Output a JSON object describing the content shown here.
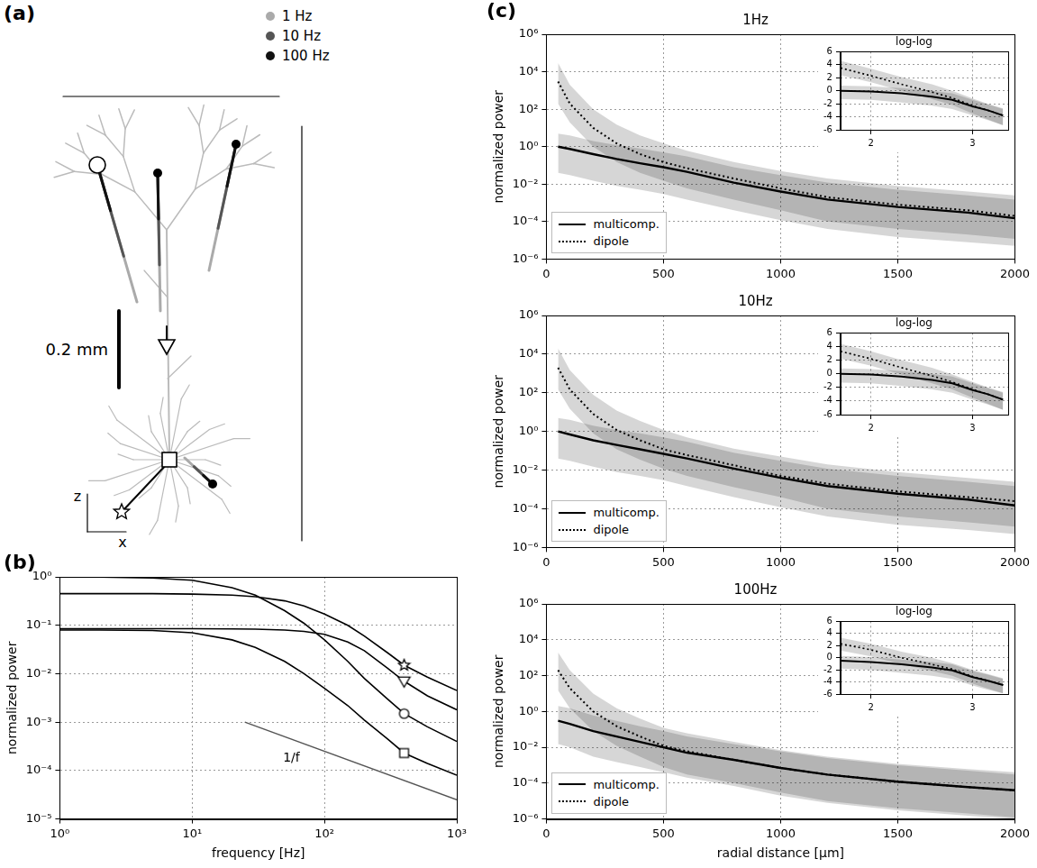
{
  "diagram": {
    "panel": "(a)",
    "legend": [
      {
        "name": "1 Hz",
        "color": "#aaaaaa"
      },
      {
        "name": "10 Hz",
        "color": "#555555"
      },
      {
        "name": "100 Hz",
        "color": "#111111"
      }
    ],
    "scale_bar": "0.2 mm",
    "axes": {
      "vertical": "z",
      "horizontal": "x"
    }
  },
  "chart_data": [
    {
      "panel": "(b)",
      "type": "line",
      "log": true,
      "grid": true,
      "x_label": "frequency [Hz]",
      "y_label": "normalized power",
      "xlim": [
        1,
        1000
      ],
      "ylim": [
        1e-05,
        1
      ],
      "xticks": [
        {
          "value": 1,
          "label": "10⁰"
        },
        {
          "value": 10,
          "label": "10¹"
        },
        {
          "value": 100,
          "label": "10²"
        },
        {
          "value": 1000,
          "label": "10³"
        }
      ],
      "yticks": [
        {
          "value": 1e-05,
          "label": "10⁻⁵"
        },
        {
          "value": 0.0001,
          "label": "10⁻⁴"
        },
        {
          "value": 0.001,
          "label": "10⁻³"
        },
        {
          "value": 0.01,
          "label": "10⁻²"
        },
        {
          "value": 0.1,
          "label": "10⁻¹"
        },
        {
          "value": 1,
          "label": "10⁰"
        }
      ],
      "x": [
        1,
        2,
        5,
        10,
        20,
        30,
        50,
        70,
        100,
        150,
        200,
        300,
        400,
        600,
        1000
      ],
      "marker_x": 400,
      "series": [
        {
          "color": "#000000",
          "marker": "star",
          "values": [
            0.45,
            0.45,
            0.45,
            0.44,
            0.42,
            0.39,
            0.32,
            0.25,
            0.17,
            0.1,
            0.06,
            0.027,
            0.015,
            0.0085,
            0.0045
          ]
        },
        {
          "color": "#000000",
          "marker": "triangle_down",
          "values": [
            0.085,
            0.085,
            0.085,
            0.085,
            0.084,
            0.083,
            0.08,
            0.075,
            0.065,
            0.045,
            0.03,
            0.013,
            0.007,
            0.0035,
            0.0018
          ]
        },
        {
          "color": "#000000",
          "marker": "circle",
          "values": [
            1.0,
            0.99,
            0.95,
            0.85,
            0.6,
            0.42,
            0.2,
            0.11,
            0.05,
            0.018,
            0.008,
            0.003,
            0.0015,
            0.0008,
            0.0004
          ]
        },
        {
          "color": "#000000",
          "marker": "square",
          "values": [
            0.08,
            0.08,
            0.078,
            0.07,
            0.05,
            0.035,
            0.018,
            0.01,
            0.005,
            0.0022,
            0.0011,
            0.00045,
            0.00023,
            0.00014,
            8e-05
          ]
        }
      ],
      "reference_line": {
        "name": "1/f",
        "color": "#555555",
        "x": [
          25,
          1000
        ],
        "values": [
          0.001,
          2.5e-05
        ]
      }
    },
    {
      "panel": "(c)",
      "type": "line",
      "title": "1Hz",
      "log": "y",
      "grid": true,
      "legend": "lower left",
      "y_label": "normalized power",
      "xlim": [
        0,
        2000
      ],
      "xticks": [
        0,
        500,
        1000,
        1500,
        2000
      ],
      "ylim": [
        1e-06,
        1000000
      ],
      "yticks": [
        {
          "value": 1e-06,
          "label": "10⁻⁶"
        },
        {
          "value": 0.0001,
          "label": "10⁻⁴"
        },
        {
          "value": 0.01,
          "label": "10⁻²"
        },
        {
          "value": 1,
          "label": "10⁰"
        },
        {
          "value": 100,
          "label": "10²"
        },
        {
          "value": 10000,
          "label": "10⁴"
        },
        {
          "value": 1000000,
          "label": "10⁶"
        }
      ],
      "x": [
        50,
        100,
        200,
        300,
        400,
        500,
        600,
        800,
        1000,
        1200,
        1500,
        1800,
        2000
      ],
      "series": [
        {
          "name": "multicomp.",
          "color": "#000000",
          "line_style": "solid",
          "values": [
            1.0,
            0.75,
            0.4,
            0.22,
            0.13,
            0.08,
            0.045,
            0.012,
            0.004,
            0.0015,
            0.0006,
            0.0003,
            0.00015
          ],
          "lower": [
            0.04,
            0.03,
            0.015,
            0.008,
            0.005,
            0.003,
            0.0015,
            0.0004,
            0.00012,
            4e-05,
            1.5e-05,
            8e-06,
            5e-06
          ],
          "upper": [
            5,
            4,
            2,
            1.2,
            0.8,
            0.5,
            0.3,
            0.08,
            0.03,
            0.012,
            0.005,
            0.0025,
            0.0015
          ]
        },
        {
          "name": "dipole",
          "color": "#000000",
          "line_style": "dotted",
          "values": [
            3000,
            200,
            10,
            1.5,
            0.4,
            0.15,
            0.07,
            0.02,
            0.006,
            0.002,
            0.0008,
            0.0004,
            0.0002
          ],
          "lower": [
            200,
            20,
            1,
            0.15,
            0.04,
            0.015,
            0.006,
            0.0015,
            0.0004,
            0.0001,
            4e-05,
            2e-05,
            1.2e-05
          ],
          "upper": [
            30000,
            2000,
            100,
            15,
            4,
            1.5,
            0.6,
            0.15,
            0.05,
            0.02,
            0.008,
            0.004,
            0.0025
          ]
        }
      ],
      "inset": {
        "title": "log-log",
        "type": "line",
        "grid": true,
        "xlim": [
          1.7,
          3.35
        ],
        "xticks": [
          2,
          3
        ],
        "ylim": [
          -6,
          6
        ],
        "yticks": [
          -6,
          -4,
          -2,
          0,
          2,
          4,
          6
        ],
        "x": [
          1.7,
          2.0,
          2.3,
          2.6,
          2.8,
          3.0,
          3.15,
          3.3
        ],
        "series": [
          {
            "color": "#000000",
            "line_style": "solid",
            "values": [
              0,
              -0.1,
              -0.4,
              -0.9,
              -1.4,
              -2.4,
              -3.0,
              -3.8
            ],
            "lower": [
              -1.3,
              -1.4,
              -1.8,
              -2.3,
              -2.8,
              -3.8,
              -4.5,
              -5.3
            ],
            "upper": [
              0.8,
              0.7,
              0.4,
              0,
              -0.4,
              -1.4,
              -2.1,
              -2.8
            ]
          },
          {
            "color": "#000000",
            "line_style": "dotted",
            "values": [
              3.5,
              2.3,
              1.0,
              -0.2,
              -1.1,
              -2.3,
              -3.0,
              -3.8
            ],
            "lower": [
              2.4,
              1.3,
              0,
              -1.3,
              -2.2,
              -3.5,
              -4.4,
              -5.3
            ],
            "upper": [
              4.6,
              3.4,
              2.1,
              1.0,
              0,
              -1.2,
              -2.0,
              -2.7
            ]
          }
        ]
      }
    },
    {
      "type": "line",
      "title": "10Hz",
      "log": "y",
      "grid": true,
      "legend": "lower left",
      "y_label": "normalized power",
      "xlim": [
        0,
        2000
      ],
      "xticks": [
        0,
        500,
        1000,
        1500,
        2000
      ],
      "ylim": [
        1e-06,
        1000000
      ],
      "yticks": [
        {
          "value": 1e-06,
          "label": "10⁻⁶"
        },
        {
          "value": 0.0001,
          "label": "10⁻⁴"
        },
        {
          "value": 0.01,
          "label": "10⁻²"
        },
        {
          "value": 1,
          "label": "10⁰"
        },
        {
          "value": 100,
          "label": "10²"
        },
        {
          "value": 10000,
          "label": "10⁴"
        },
        {
          "value": 1000000,
          "label": "10⁶"
        }
      ],
      "x": [
        50,
        100,
        200,
        300,
        400,
        500,
        600,
        800,
        1000,
        1200,
        1500,
        1800,
        2000
      ],
      "series": [
        {
          "name": "multicomp.",
          "color": "#000000",
          "line_style": "solid",
          "values": [
            1.0,
            0.7,
            0.35,
            0.2,
            0.12,
            0.07,
            0.04,
            0.012,
            0.004,
            0.0015,
            0.0006,
            0.0003,
            0.00015
          ],
          "lower": [
            0.04,
            0.03,
            0.015,
            0.008,
            0.005,
            0.003,
            0.0015,
            0.0004,
            0.00012,
            4e-05,
            1.5e-05,
            8e-06,
            5e-06
          ],
          "upper": [
            5,
            4,
            2,
            1.2,
            0.8,
            0.5,
            0.3,
            0.08,
            0.03,
            0.012,
            0.005,
            0.0025,
            0.0015
          ]
        },
        {
          "name": "dipole",
          "color": "#000000",
          "line_style": "dotted",
          "values": [
            2000,
            150,
            8,
            1.2,
            0.35,
            0.12,
            0.06,
            0.018,
            0.005,
            0.002,
            0.0008,
            0.0004,
            0.00025
          ],
          "lower": [
            150,
            15,
            0.8,
            0.12,
            0.035,
            0.012,
            0.005,
            0.0013,
            0.0004,
            0.0001,
            4e-05,
            2e-05,
            1.2e-05
          ],
          "upper": [
            20000,
            1500,
            80,
            12,
            3.5,
            1.2,
            0.5,
            0.13,
            0.05,
            0.02,
            0.008,
            0.004,
            0.0025
          ]
        }
      ],
      "inset": {
        "title": "log-log",
        "type": "line",
        "grid": true,
        "xlim": [
          1.7,
          3.35
        ],
        "xticks": [
          2,
          3
        ],
        "ylim": [
          -6,
          6
        ],
        "yticks": [
          -6,
          -4,
          -2,
          0,
          2,
          4,
          6
        ],
        "x": [
          1.7,
          2.0,
          2.3,
          2.6,
          2.8,
          3.0,
          3.15,
          3.3
        ],
        "series": [
          {
            "color": "#000000",
            "line_style": "solid",
            "values": [
              0,
              -0.1,
              -0.4,
              -0.9,
              -1.4,
              -2.4,
              -3.0,
              -3.8
            ],
            "lower": [
              -1.3,
              -1.4,
              -1.8,
              -2.3,
              -2.8,
              -3.8,
              -4.5,
              -5.3
            ],
            "upper": [
              0.8,
              0.7,
              0.4,
              0,
              -0.4,
              -1.4,
              -2.1,
              -2.8
            ]
          },
          {
            "color": "#000000",
            "line_style": "dotted",
            "values": [
              3.3,
              2.2,
              0.9,
              -0.3,
              -1.2,
              -2.3,
              -3.0,
              -3.8
            ],
            "lower": [
              2.2,
              1.2,
              -0.1,
              -1.4,
              -2.3,
              -3.5,
              -4.4,
              -5.3
            ],
            "upper": [
              4.4,
              3.3,
              2.0,
              0.9,
              -0.1,
              -1.2,
              -2.0,
              -2.7
            ]
          }
        ]
      }
    },
    {
      "type": "line",
      "title": "100Hz",
      "log": "y",
      "grid": true,
      "legend": "lower left",
      "x_label": "radial distance [µm]",
      "y_label": "normalized power",
      "xlim": [
        0,
        2000
      ],
      "xticks": [
        0,
        500,
        1000,
        1500,
        2000
      ],
      "ylim": [
        1e-06,
        1000000
      ],
      "yticks": [
        {
          "value": 1e-06,
          "label": "10⁻⁶"
        },
        {
          "value": 0.0001,
          "label": "10⁻⁴"
        },
        {
          "value": 0.01,
          "label": "10⁻²"
        },
        {
          "value": 1,
          "label": "10⁰"
        },
        {
          "value": 100,
          "label": "10²"
        },
        {
          "value": 10000,
          "label": "10⁴"
        },
        {
          "value": 1000000,
          "label": "10⁶"
        }
      ],
      "x": [
        50,
        100,
        200,
        300,
        400,
        500,
        600,
        800,
        1000,
        1200,
        1500,
        1800,
        2000
      ],
      "series": [
        {
          "name": "multicomp.",
          "color": "#000000",
          "line_style": "solid",
          "values": [
            0.3,
            0.2,
            0.08,
            0.04,
            0.02,
            0.01,
            0.005,
            0.002,
            0.0007,
            0.0003,
            0.00012,
            6e-05,
            4e-05
          ],
          "lower": [
            0.015,
            0.01,
            0.003,
            0.0015,
            0.0008,
            0.0004,
            0.0002,
            7e-05,
            2e-05,
            8e-06,
            3e-06,
            1.5e-06,
            1e-06
          ],
          "upper": [
            2,
            1.5,
            0.6,
            0.3,
            0.15,
            0.08,
            0.04,
            0.015,
            0.006,
            0.0025,
            0.001,
            0.0005,
            0.0003
          ]
        },
        {
          "name": "dipole",
          "color": "#000000",
          "line_style": "dotted",
          "values": [
            200,
            20,
            1,
            0.15,
            0.04,
            0.012,
            0.006,
            0.002,
            0.0007,
            0.0003,
            0.00012,
            6e-05,
            4e-05
          ],
          "lower": [
            15,
            1.5,
            0.08,
            0.012,
            0.003,
            0.0008,
            0.0003,
            0.0001,
            3e-05,
            1e-05,
            4e-06,
            2e-06,
            1.2e-06
          ],
          "upper": [
            2000,
            200,
            10,
            1.5,
            0.4,
            0.12,
            0.06,
            0.02,
            0.007,
            0.003,
            0.0012,
            0.0006,
            0.0004
          ]
        }
      ],
      "inset": {
        "title": "log-log",
        "type": "line",
        "grid": true,
        "xlim": [
          1.7,
          3.35
        ],
        "xticks": [
          2,
          3
        ],
        "ylim": [
          -6,
          6
        ],
        "yticks": [
          -6,
          -4,
          -2,
          0,
          2,
          4,
          6
        ],
        "x": [
          1.7,
          2.0,
          2.3,
          2.6,
          2.8,
          3.0,
          3.15,
          3.3
        ],
        "series": [
          {
            "color": "#000000",
            "line_style": "solid",
            "values": [
              -0.5,
              -0.7,
              -1.1,
              -1.6,
              -2.1,
              -3.2,
              -3.8,
              -4.5
            ],
            "lower": [
              -1.8,
              -2.0,
              -2.5,
              -3.0,
              -3.5,
              -4.6,
              -5.3,
              -5.9
            ],
            "upper": [
              0.3,
              0.1,
              -0.3,
              -0.7,
              -1.1,
              -2.2,
              -2.8,
              -3.5
            ]
          },
          {
            "color": "#000000",
            "line_style": "dotted",
            "values": [
              2.3,
              1.3,
              0,
              -1.1,
              -1.9,
              -3.1,
              -3.8,
              -4.5
            ],
            "lower": [
              1.2,
              0.2,
              -1.1,
              -2.2,
              -3.0,
              -4.3,
              -5.1,
              -5.9
            ],
            "upper": [
              3.3,
              2.3,
              1.0,
              0,
              -0.9,
              -2.0,
              -2.7,
              -3.4
            ]
          }
        ]
      }
    }
  ]
}
